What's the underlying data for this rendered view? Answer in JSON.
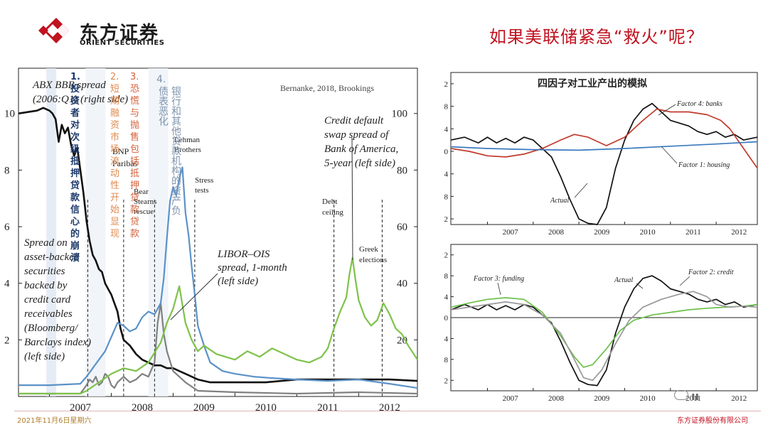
{
  "header": {
    "logo_cn": "东方证券",
    "logo_en": "ORIENT SECURITIES",
    "slide_title": "如果美联储紧急“救火”呢？",
    "brand_color": "#c0121f"
  },
  "footer": {
    "date": "2021年11月6日星期六",
    "company": "东方证券股份有限公司",
    "watermark": "ıı"
  },
  "overlays": {
    "source": "Bernanke, 2018, Brookings",
    "events": [
      {
        "number": "1.",
        "text": "投资者对次级抵押贷款信心的崩溃",
        "color": "#1f3b6b"
      },
      {
        "number": "2.",
        "text": "短期融资市场流动性开始显现",
        "color": "#e08a50"
      },
      {
        "number": "3.",
        "text": "恐慌与抛售包括抵押贷款贷款",
        "color": "#d4603a"
      },
      {
        "number": "4.",
        "text": "银行和其他贷款机构的资产负债表恶化",
        "color": "#7f93ad"
      }
    ]
  },
  "chart_data": [
    {
      "type": "line",
      "title": "",
      "x_ticks": [
        "2007",
        "2008",
        "2009",
        "2010",
        "2011",
        "2012"
      ],
      "xlim": [
        2006.5,
        2012.95
      ],
      "y_left_ticks": [
        "2",
        "4",
        "6",
        "8",
        "10"
      ],
      "y_left_lim": [
        0,
        11.6
      ],
      "y_right_ticks": [
        "20",
        "40",
        "60",
        "80",
        "100"
      ],
      "y_right_lim": [
        0,
        116
      ],
      "annotations": {
        "abx": [
          "ABX BBB spread",
          "(2006:Q1) (right side)"
        ],
        "bnp": [
          "BNP",
          "Paribas"
        ],
        "bear": [
          "Bear",
          "Stearns",
          "rescue"
        ],
        "lehman": [
          "Lehman",
          "Brothers"
        ],
        "stress": [
          "Stress",
          "tests"
        ],
        "libor": [
          "LIBOR–OIS",
          "spread, 1-month",
          "(left side)"
        ],
        "cds": [
          "Credit default",
          "swap spread of",
          "Bank of America,",
          "5-year (left side)"
        ],
        "debt": [
          "Debt",
          "ceiling"
        ],
        "greek": [
          "Greek",
          "elections"
        ],
        "abs": [
          "Spread on",
          "asset-backed",
          "securities",
          "backed by",
          "credit card",
          "receivables",
          "(Bloomberg/",
          "Barclays index)",
          "(left side)"
        ]
      },
      "event_lines": [
        2007.62,
        2008.2,
        2008.7,
        2009.35,
        2011.6,
        2012.38
      ],
      "series": [
        {
          "name": "ABX BBB spread (right side)",
          "color": "#111111",
          "x": [
            2006.5,
            2006.8,
            2006.9,
            2007.0,
            2007.05,
            2007.1,
            2007.15,
            2007.2,
            2007.25,
            2007.3,
            2007.35,
            2007.4,
            2007.45,
            2007.5,
            2007.55,
            2007.6,
            2007.65,
            2007.7,
            2007.75,
            2007.8,
            2007.85,
            2007.9,
            2007.95,
            2008.0,
            2008.05,
            2008.1,
            2008.15,
            2008.2,
            2008.25,
            2008.3,
            2008.4,
            2008.5,
            2008.6,
            2008.7,
            2008.8,
            2008.9,
            2009.0,
            2009.1,
            2009.2,
            2009.3,
            2009.4,
            2009.6,
            2009.8,
            2010.0,
            2010.5,
            2011.0,
            2011.5,
            2012.0,
            2012.5,
            2012.95
          ],
          "y": [
            100,
            101,
            102,
            101,
            100,
            98,
            90,
            96,
            93,
            95,
            89,
            85,
            88,
            80,
            72,
            62,
            55,
            50,
            48,
            45,
            44,
            40,
            38,
            36,
            33,
            30,
            24,
            20,
            19,
            18,
            15,
            13,
            12,
            11,
            11,
            10,
            10,
            9,
            8,
            7,
            6,
            5,
            5,
            5,
            5,
            6,
            6,
            6,
            6,
            5.5
          ]
        },
        {
          "name": "LIBOR-OIS spread, 1-month (left side)",
          "color": "#808080",
          "x": [
            2006.5,
            2007.0,
            2007.5,
            2007.6,
            2007.65,
            2007.7,
            2007.75,
            2007.8,
            2007.85,
            2007.9,
            2007.95,
            2008.0,
            2008.05,
            2008.1,
            2008.2,
            2008.3,
            2008.4,
            2008.5,
            2008.6,
            2008.7,
            2008.75,
            2008.8,
            2008.85,
            2008.9,
            2009.0,
            2009.2,
            2009.4,
            2010.0,
            2011.0,
            2012.0,
            2012.95
          ],
          "y": [
            0.1,
            0.1,
            0.1,
            0.4,
            0.6,
            0.5,
            0.7,
            0.4,
            0.5,
            0.8,
            0.7,
            0.4,
            0.3,
            0.5,
            0.7,
            0.5,
            0.6,
            0.8,
            0.7,
            1.2,
            2.6,
            3.3,
            2.2,
            1.6,
            0.9,
            0.5,
            0.2,
            0.15,
            0.1,
            0.15,
            0.1
          ]
        },
        {
          "name": "ABS credit card spread (left side)",
          "color": "#5b92c8",
          "x": [
            2006.5,
            2007.0,
            2007.5,
            2007.6,
            2007.7,
            2007.8,
            2007.9,
            2008.0,
            2008.1,
            2008.2,
            2008.3,
            2008.4,
            2008.5,
            2008.6,
            2008.7,
            2008.8,
            2008.85,
            2008.9,
            2008.95,
            2009.0,
            2009.05,
            2009.1,
            2009.15,
            2009.2,
            2009.25,
            2009.3,
            2009.35,
            2009.4,
            2009.5,
            2009.6,
            2009.8,
            2010.0,
            2010.3,
            2010.6,
            2011.0,
            2011.5,
            2012.0,
            2012.5,
            2012.95
          ],
          "y": [
            0.4,
            0.4,
            0.45,
            0.7,
            1.0,
            1.3,
            1.6,
            2.1,
            2.6,
            2.5,
            2.3,
            2.4,
            2.8,
            3.0,
            2.9,
            3.3,
            4.2,
            5.6,
            6.9,
            7.4,
            7.1,
            7.7,
            8.1,
            6.5,
            5.7,
            4.6,
            3.6,
            2.5,
            1.8,
            1.2,
            0.9,
            0.8,
            0.7,
            0.65,
            0.6,
            0.55,
            0.6,
            0.45,
            0.3
          ]
        },
        {
          "name": "Credit default swap spread of Bank of America, 5-year (left side)",
          "color": "#7dc24a",
          "x": [
            2006.5,
            2007.0,
            2007.5,
            2007.6,
            2007.8,
            2008.0,
            2008.2,
            2008.4,
            2008.6,
            2008.8,
            2008.9,
            2009.0,
            2009.1,
            2009.2,
            2009.3,
            2009.4,
            2009.5,
            2009.7,
            2010.0,
            2010.2,
            2010.4,
            2010.6,
            2010.8,
            2011.0,
            2011.2,
            2011.4,
            2011.5,
            2011.6,
            2011.7,
            2011.8,
            2011.85,
            2011.9,
            2011.95,
            2012.0,
            2012.1,
            2012.2,
            2012.3,
            2012.4,
            2012.5,
            2012.6,
            2012.7,
            2012.8,
            2012.95
          ],
          "y": [
            0.1,
            0.1,
            0.1,
            0.2,
            0.5,
            0.8,
            1.0,
            0.9,
            1.2,
            1.9,
            2.6,
            3.1,
            3.9,
            2.6,
            2.0,
            1.6,
            1.8,
            1.5,
            1.3,
            1.6,
            1.4,
            1.7,
            1.5,
            1.3,
            1.2,
            1.4,
            1.7,
            2.4,
            3.0,
            3.5,
            4.3,
            4.9,
            4.1,
            3.4,
            2.8,
            2.5,
            2.7,
            3.3,
            2.9,
            2.4,
            2.2,
            1.8,
            1.3
          ]
        }
      ]
    },
    {
      "type": "line",
      "title": "四因子对工业产出的模拟",
      "x_ticks": [
        "2007",
        "2008",
        "2009",
        "2010",
        "2011",
        "2012"
      ],
      "xlim": [
        2006.2,
        2012.9
      ],
      "y_ticks": [
        "2",
        "8",
        "4",
        "0",
        "4",
        "8",
        "2"
      ],
      "ylim": [
        -13,
        14
      ],
      "annotations": [
        "Factor 4: banks",
        "Factor 1: housing",
        "Actual"
      ],
      "series": [
        {
          "name": "Actual",
          "color": "#111111",
          "x": [
            2006.2,
            2006.5,
            2006.8,
            2007.0,
            2007.2,
            2007.4,
            2007.6,
            2007.8,
            2008.0,
            2008.2,
            2008.4,
            2008.6,
            2008.8,
            2009.0,
            2009.2,
            2009.4,
            2009.6,
            2009.8,
            2010.0,
            2010.2,
            2010.4,
            2010.6,
            2010.8,
            2011.0,
            2011.2,
            2011.4,
            2011.6,
            2011.8,
            2012.0,
            2012.2,
            2012.4,
            2012.6,
            2012.9
          ],
          "y": [
            2.0,
            2.5,
            1.5,
            2.5,
            1.5,
            2.3,
            1.5,
            2.5,
            2.0,
            0.5,
            -1.0,
            -4.5,
            -8.5,
            -12.0,
            -12.8,
            -13.0,
            -10.0,
            -3.0,
            2.0,
            5.5,
            7.5,
            8.5,
            7.0,
            5.5,
            5.0,
            4.5,
            3.5,
            3.0,
            3.5,
            2.5,
            3.0,
            2.0,
            2.5
          ]
        },
        {
          "name": "Factor 4: banks",
          "color": "#c0392b",
          "x": [
            2006.2,
            2006.6,
            2007.0,
            2007.4,
            2007.8,
            2008.2,
            2008.6,
            2008.9,
            2009.2,
            2009.6,
            2010.0,
            2010.4,
            2010.7,
            2011.0,
            2011.4,
            2011.8,
            2012.1,
            2012.3,
            2012.6,
            2012.9
          ],
          "y": [
            0.5,
            0.0,
            -0.8,
            -1.0,
            -0.5,
            0.5,
            2.0,
            3.0,
            2.5,
            1.0,
            2.5,
            5.5,
            7.5,
            7.0,
            7.0,
            6.5,
            5.5,
            4.0,
            0.5,
            -3.0
          ]
        },
        {
          "name": "Factor 1: housing",
          "color": "#3a7abf",
          "x": [
            2006.2,
            2007.0,
            2008.0,
            2009.0,
            2010.0,
            2011.0,
            2012.0,
            2012.9
          ],
          "y": [
            0.8,
            0.5,
            0.3,
            0.2,
            0.5,
            0.9,
            1.3,
            1.7
          ]
        }
      ]
    },
    {
      "type": "line",
      "title": "",
      "x_ticks": [
        "2007",
        "2008",
        "2009",
        "2010",
        "2011",
        "2012"
      ],
      "xlim": [
        2006.2,
        2012.9
      ],
      "y_ticks": [
        "2",
        "8",
        "4",
        "0",
        "4",
        "8",
        "2"
      ],
      "ylim": [
        -14,
        14
      ],
      "annotations": [
        "Factor 3: funding",
        "Actual",
        "Factor 2: credit"
      ],
      "series": [
        {
          "name": "Actual",
          "color": "#111111",
          "x": [
            2006.2,
            2006.5,
            2006.8,
            2007.0,
            2007.2,
            2007.4,
            2007.6,
            2007.8,
            2008.0,
            2008.2,
            2008.4,
            2008.6,
            2008.8,
            2009.0,
            2009.2,
            2009.4,
            2009.6,
            2009.8,
            2010.0,
            2010.2,
            2010.4,
            2010.6,
            2010.8,
            2011.0,
            2011.2,
            2011.4,
            2011.6,
            2011.8,
            2012.0,
            2012.2,
            2012.4,
            2012.6,
            2012.9
          ],
          "y": [
            1.5,
            2.5,
            1.5,
            2.5,
            1.5,
            2.3,
            1.5,
            2.5,
            2.0,
            0.5,
            -1.0,
            -4.5,
            -8.5,
            -12.0,
            -12.8,
            -13.0,
            -10.0,
            -3.0,
            2.0,
            5.5,
            7.5,
            8.0,
            7.0,
            5.5,
            5.0,
            4.5,
            3.5,
            3.0,
            3.5,
            2.5,
            3.0,
            2.0,
            2.5
          ]
        },
        {
          "name": "Factor 3: funding",
          "color": "#6cc04a",
          "x": [
            2006.2,
            2006.6,
            2007.0,
            2007.4,
            2007.8,
            2008.2,
            2008.6,
            2008.9,
            2009.1,
            2009.3,
            2009.6,
            2009.9,
            2010.2,
            2010.6,
            2011.0,
            2011.4,
            2011.8,
            2012.2,
            2012.6,
            2012.9
          ],
          "y": [
            2.0,
            2.8,
            3.5,
            3.8,
            3.5,
            1.0,
            -3.5,
            -7.5,
            -9.5,
            -9.0,
            -6.0,
            -2.5,
            -0.5,
            0.5,
            1.0,
            1.5,
            1.8,
            2.0,
            2.2,
            2.5
          ]
        },
        {
          "name": "Factor 2: credit",
          "color": "#999999",
          "x": [
            2006.2,
            2006.6,
            2007.0,
            2007.4,
            2007.8,
            2008.2,
            2008.6,
            2008.9,
            2009.1,
            2009.3,
            2009.5,
            2009.8,
            2010.1,
            2010.4,
            2010.8,
            2011.2,
            2011.5,
            2011.8,
            2012.0,
            2012.3,
            2012.6,
            2012.9
          ],
          "y": [
            1.5,
            2.0,
            2.5,
            3.0,
            2.5,
            0.5,
            -3.0,
            -8.0,
            -11.5,
            -12.0,
            -10.0,
            -5.0,
            -0.5,
            2.0,
            3.5,
            4.5,
            5.0,
            4.0,
            2.5,
            2.0,
            2.2,
            2.0
          ]
        }
      ]
    }
  ]
}
